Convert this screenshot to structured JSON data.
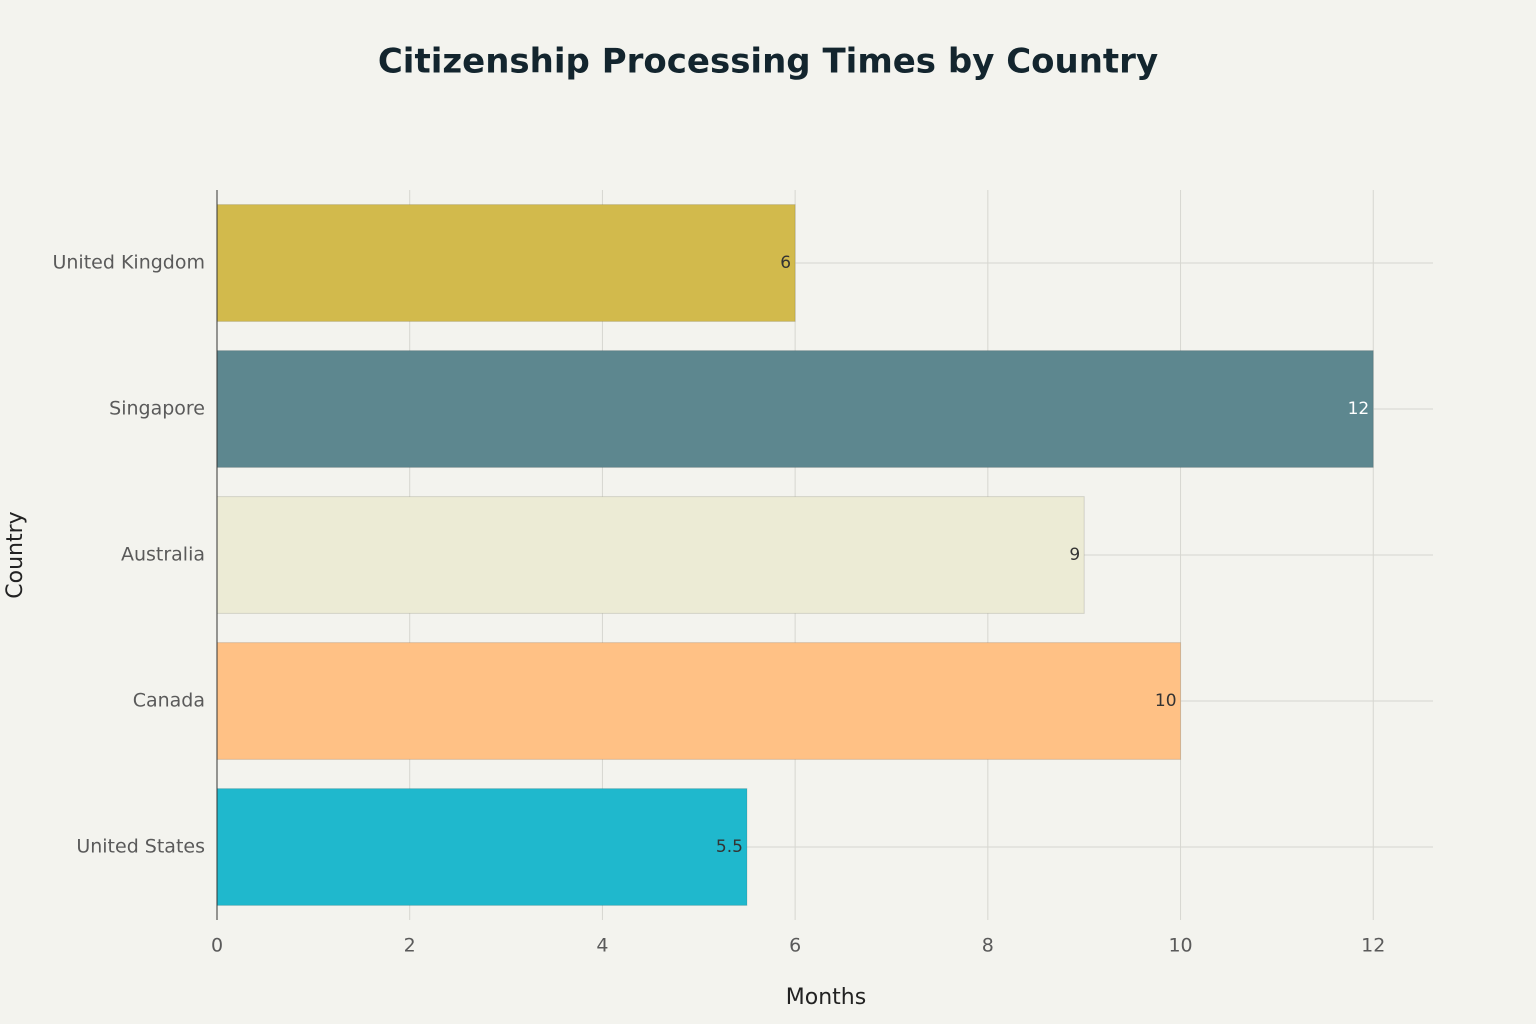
{
  "chart_data": {
    "type": "bar",
    "orientation": "horizontal",
    "title": "Citizenship Processing Times by Country",
    "x_label": "Months",
    "y_label": "Country",
    "categories": [
      "United States",
      "Canada",
      "Australia",
      "Singapore",
      "United Kingdom"
    ],
    "values": [
      5.5,
      10,
      9,
      12,
      6
    ],
    "colors": [
      "#1FB8CD",
      "#FFC185",
      "#ECEBD5",
      "#5D878F",
      "#D2BA4C"
    ],
    "xlim": [
      0,
      12.62
    ],
    "xticks": [
      0,
      2,
      4,
      6,
      8,
      10,
      12
    ],
    "grid": true
  }
}
